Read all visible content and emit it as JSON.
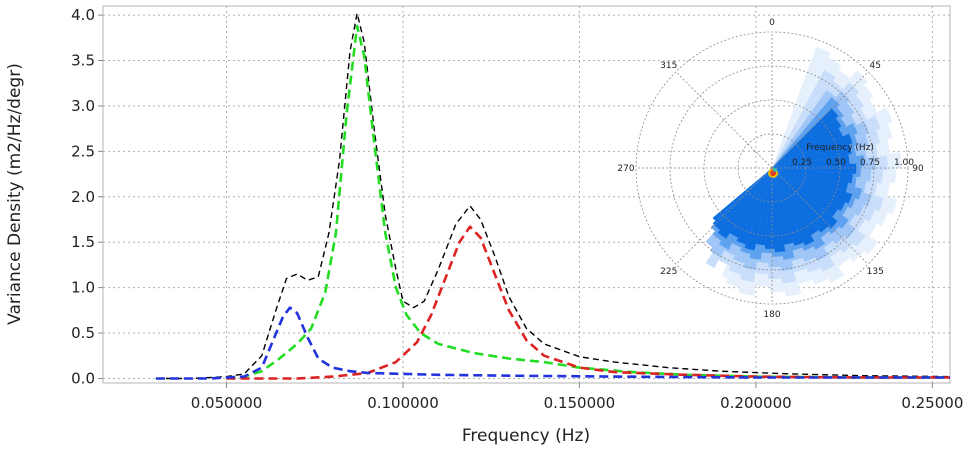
{
  "chart_data": [
    {
      "type": "line",
      "title": "",
      "xlabel": "Frequency (Hz)",
      "ylabel": "Variance Density (m2/Hz/degr)",
      "xlim": [
        0.015,
        0.255
      ],
      "ylim": [
        -0.05,
        4.1
      ],
      "grid": true,
      "legend": "none",
      "x_ticks": [
        0.05,
        0.1,
        0.15,
        0.2,
        0.25
      ],
      "x_tick_labels": [
        "0.050000",
        "0.100000",
        "0.150000",
        "0.200000",
        "0.25000"
      ],
      "y_ticks": [
        0.0,
        0.5,
        1.0,
        1.5,
        2.0,
        2.5,
        3.0,
        3.5,
        4.0
      ],
      "y_tick_labels": [
        "0.0",
        "0.5",
        "1.0",
        "1.5",
        "2.0",
        "2.5",
        "3.0",
        "3.5",
        "4.0"
      ],
      "series": [
        {
          "color": "#000000",
          "style": "dashed",
          "points": [
            [
              0.03,
              0.0
            ],
            [
              0.04,
              0.0
            ],
            [
              0.05,
              0.02
            ],
            [
              0.055,
              0.05
            ],
            [
              0.06,
              0.25
            ],
            [
              0.064,
              0.75
            ],
            [
              0.067,
              1.1
            ],
            [
              0.07,
              1.15
            ],
            [
              0.073,
              1.08
            ],
            [
              0.076,
              1.12
            ],
            [
              0.079,
              1.6
            ],
            [
              0.082,
              2.4
            ],
            [
              0.085,
              3.6
            ],
            [
              0.087,
              4.02
            ],
            [
              0.089,
              3.7
            ],
            [
              0.092,
              2.7
            ],
            [
              0.095,
              1.8
            ],
            [
              0.098,
              1.2
            ],
            [
              0.1,
              0.85
            ],
            [
              0.103,
              0.78
            ],
            [
              0.106,
              0.85
            ],
            [
              0.11,
              1.2
            ],
            [
              0.115,
              1.7
            ],
            [
              0.119,
              1.9
            ],
            [
              0.122,
              1.75
            ],
            [
              0.126,
              1.35
            ],
            [
              0.13,
              0.9
            ],
            [
              0.135,
              0.55
            ],
            [
              0.14,
              0.38
            ],
            [
              0.15,
              0.24
            ],
            [
              0.16,
              0.18
            ],
            [
              0.175,
              0.12
            ],
            [
              0.19,
              0.08
            ],
            [
              0.21,
              0.05
            ],
            [
              0.23,
              0.03
            ],
            [
              0.255,
              0.02
            ]
          ]
        },
        {
          "color": "#22dd22",
          "style": "dashed",
          "points": [
            [
              0.05,
              0.0
            ],
            [
              0.055,
              0.02
            ],
            [
              0.06,
              0.08
            ],
            [
              0.065,
              0.22
            ],
            [
              0.07,
              0.38
            ],
            [
              0.074,
              0.55
            ],
            [
              0.078,
              0.95
            ],
            [
              0.081,
              1.6
            ],
            [
              0.084,
              2.9
            ],
            [
              0.087,
              3.88
            ],
            [
              0.089,
              3.55
            ],
            [
              0.092,
              2.55
            ],
            [
              0.095,
              1.6
            ],
            [
              0.098,
              1.0
            ],
            [
              0.101,
              0.7
            ],
            [
              0.105,
              0.5
            ],
            [
              0.11,
              0.38
            ],
            [
              0.12,
              0.28
            ],
            [
              0.13,
              0.22
            ],
            [
              0.14,
              0.18
            ],
            [
              0.15,
              0.12
            ],
            [
              0.165,
              0.07
            ],
            [
              0.18,
              0.04
            ],
            [
              0.2,
              0.02
            ],
            [
              0.23,
              0.01
            ],
            [
              0.255,
              0.01
            ]
          ]
        },
        {
          "color": "#dd2222",
          "style": "dashed",
          "points": [
            [
              0.05,
              0.0
            ],
            [
              0.07,
              0.0
            ],
            [
              0.08,
              0.02
            ],
            [
              0.09,
              0.06
            ],
            [
              0.098,
              0.18
            ],
            [
              0.104,
              0.4
            ],
            [
              0.108,
              0.7
            ],
            [
              0.112,
              1.1
            ],
            [
              0.116,
              1.5
            ],
            [
              0.119,
              1.67
            ],
            [
              0.122,
              1.55
            ],
            [
              0.126,
              1.15
            ],
            [
              0.13,
              0.75
            ],
            [
              0.135,
              0.42
            ],
            [
              0.14,
              0.25
            ],
            [
              0.15,
              0.12
            ],
            [
              0.16,
              0.07
            ],
            [
              0.18,
              0.04
            ],
            [
              0.2,
              0.02
            ],
            [
              0.23,
              0.01
            ],
            [
              0.255,
              0.01
            ]
          ]
        },
        {
          "color": "#2233dd",
          "style": "dashed",
          "points": [
            [
              0.03,
              0.0
            ],
            [
              0.045,
              0.0
            ],
            [
              0.055,
              0.02
            ],
            [
              0.06,
              0.12
            ],
            [
              0.063,
              0.4
            ],
            [
              0.066,
              0.68
            ],
            [
              0.068,
              0.78
            ],
            [
              0.07,
              0.72
            ],
            [
              0.073,
              0.45
            ],
            [
              0.076,
              0.22
            ],
            [
              0.08,
              0.12
            ],
            [
              0.085,
              0.08
            ],
            [
              0.09,
              0.06
            ],
            [
              0.1,
              0.05
            ],
            [
              0.11,
              0.04
            ],
            [
              0.13,
              0.03
            ],
            [
              0.16,
              0.02
            ],
            [
              0.2,
              0.01
            ],
            [
              0.255,
              0.01
            ]
          ]
        }
      ]
    },
    {
      "type": "heatmap",
      "projection": "polar",
      "radial_label": "Frequency (Hz)",
      "radial_ticks": [
        "0.25",
        "0.50",
        "0.75",
        "1.00"
      ],
      "angle_labels": [
        "0",
        "45",
        "90",
        "135",
        "180",
        "225",
        "270",
        "315"
      ],
      "colors": [
        "#e6f0fc",
        "#c9defa",
        "#9fc6f6",
        "#5ea2ef",
        "#0d6ee0"
      ],
      "bands": [
        {
          "level": 0,
          "inner": 0.0,
          "outer": 0.95,
          "start_deg": 20,
          "end_deg": 205
        },
        {
          "level": 1,
          "inner": 0.0,
          "outer": 0.85,
          "start_deg": 28,
          "end_deg": 215
        },
        {
          "level": 2,
          "inner": 0.0,
          "outer": 0.76,
          "start_deg": 35,
          "end_deg": 222
        },
        {
          "level": 3,
          "inner": 0.0,
          "outer": 0.68,
          "start_deg": 40,
          "end_deg": 226
        },
        {
          "level": 4,
          "inner": 0.0,
          "outer": 0.62,
          "start_deg": 45,
          "end_deg": 230
        }
      ]
    }
  ]
}
